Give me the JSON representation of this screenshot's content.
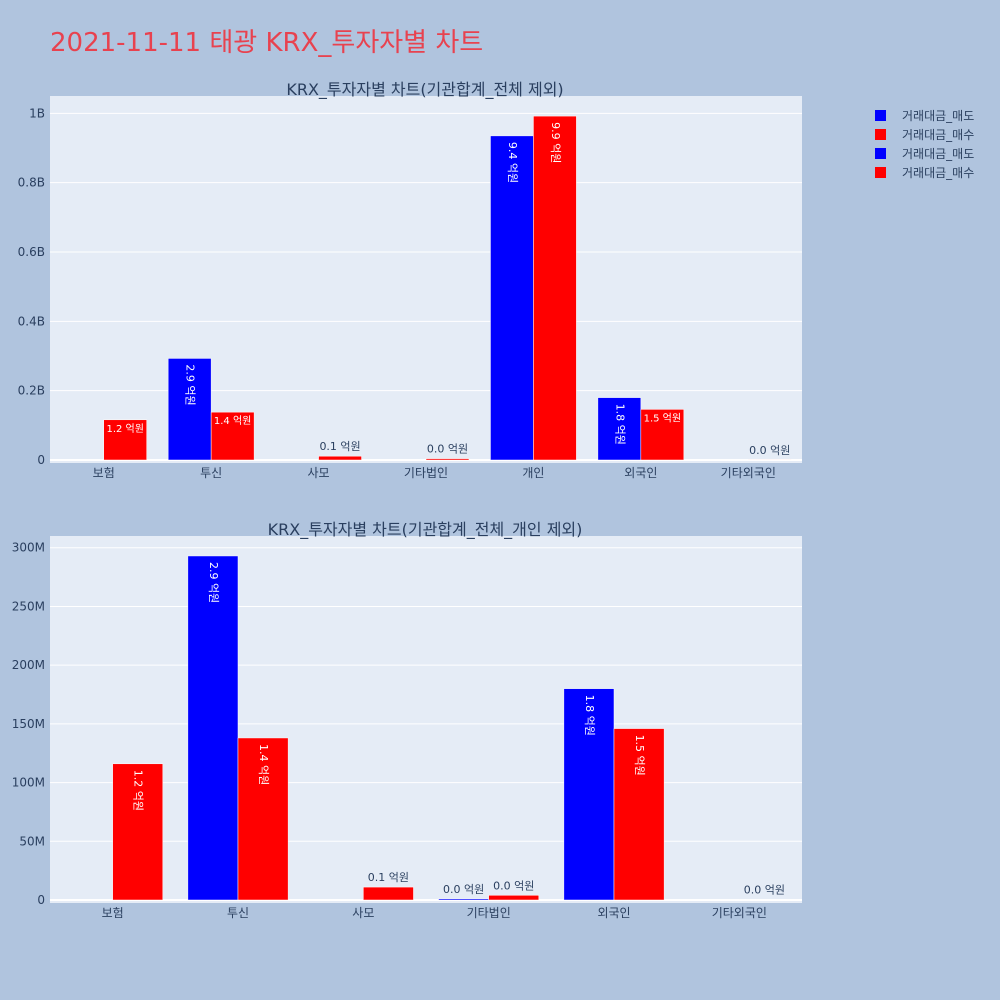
{
  "page": {
    "title": "2021-11-11 태광 KRX_투자자별 차트",
    "background": "#b0c4de",
    "title_color": "#e8424f"
  },
  "legend": [
    {
      "label": "거래대금_매도",
      "color": "#0000ff"
    },
    {
      "label": "거래대금_매수",
      "color": "#ff0000"
    },
    {
      "label": "거래대금_매도",
      "color": "#0000ff"
    },
    {
      "label": "거래대금_매수",
      "color": "#ff0000"
    }
  ],
  "chart_data": [
    {
      "type": "bar",
      "title": "KRX_투자자별 차트(기관합계_전체 제외)",
      "categories": [
        "보험",
        "투신",
        "사모",
        "기타법인",
        "개인",
        "외국인",
        "기타외국인"
      ],
      "series": [
        {
          "name": "거래대금_매도",
          "color": "#0000ff",
          "values": [
            0,
            293000000,
            0,
            1000000,
            935000000,
            180000000,
            0
          ],
          "labels": [
            "",
            "2.9 억원",
            "",
            "",
            "9.4 억원",
            "1.8 억원",
            ""
          ]
        },
        {
          "name": "거래대금_매수",
          "color": "#ff0000",
          "values": [
            116000000,
            138000000,
            11000000,
            4000000,
            992000000,
            146000000,
            300000
          ],
          "labels": [
            "1.2 억원",
            "1.4 억원",
            "0.1 억원",
            "0.0 억원",
            "9.9 억원",
            "1.5 억원",
            "0.0 억원"
          ]
        }
      ],
      "label_outside_at": [
        [],
        [],
        [],
        [
          3
        ],
        [],
        [],
        []
      ],
      "ylim": [
        0,
        1050000000
      ],
      "yticks": [
        0,
        200000000,
        400000000,
        600000000,
        800000000,
        1000000000
      ],
      "ytick_labels": [
        "0",
        "0.2B",
        "0.4B",
        "0.6B",
        "0.8B",
        "1B"
      ]
    },
    {
      "type": "bar",
      "title": "KRX_투자자별 차트(기관합계_전체_개인 제외)",
      "categories": [
        "보험",
        "투신",
        "사모",
        "기타법인",
        "외국인",
        "기타외국인"
      ],
      "series": [
        {
          "name": "거래대금_매도",
          "color": "#0000ff",
          "values": [
            0,
            293000000,
            0,
            1000000,
            180000000,
            0
          ],
          "labels": [
            "",
            "2.9 억원",
            "",
            "0.0 억원",
            "1.8 억원",
            ""
          ]
        },
        {
          "name": "거래대금_매수",
          "color": "#ff0000",
          "values": [
            116000000,
            138000000,
            11000000,
            4000000,
            146000000,
            300000
          ],
          "labels": [
            "1.2 억원",
            "1.4 억원",
            "0.1 억원",
            "0.0 억원",
            "1.5 억원",
            "0.0 억원"
          ]
        }
      ],
      "ylim": [
        0,
        310000000
      ],
      "yticks": [
        0,
        50000000,
        100000000,
        150000000,
        200000000,
        250000000,
        300000000
      ],
      "ytick_labels": [
        "0",
        "50M",
        "100M",
        "150M",
        "200M",
        "250M",
        "300M"
      ]
    }
  ]
}
